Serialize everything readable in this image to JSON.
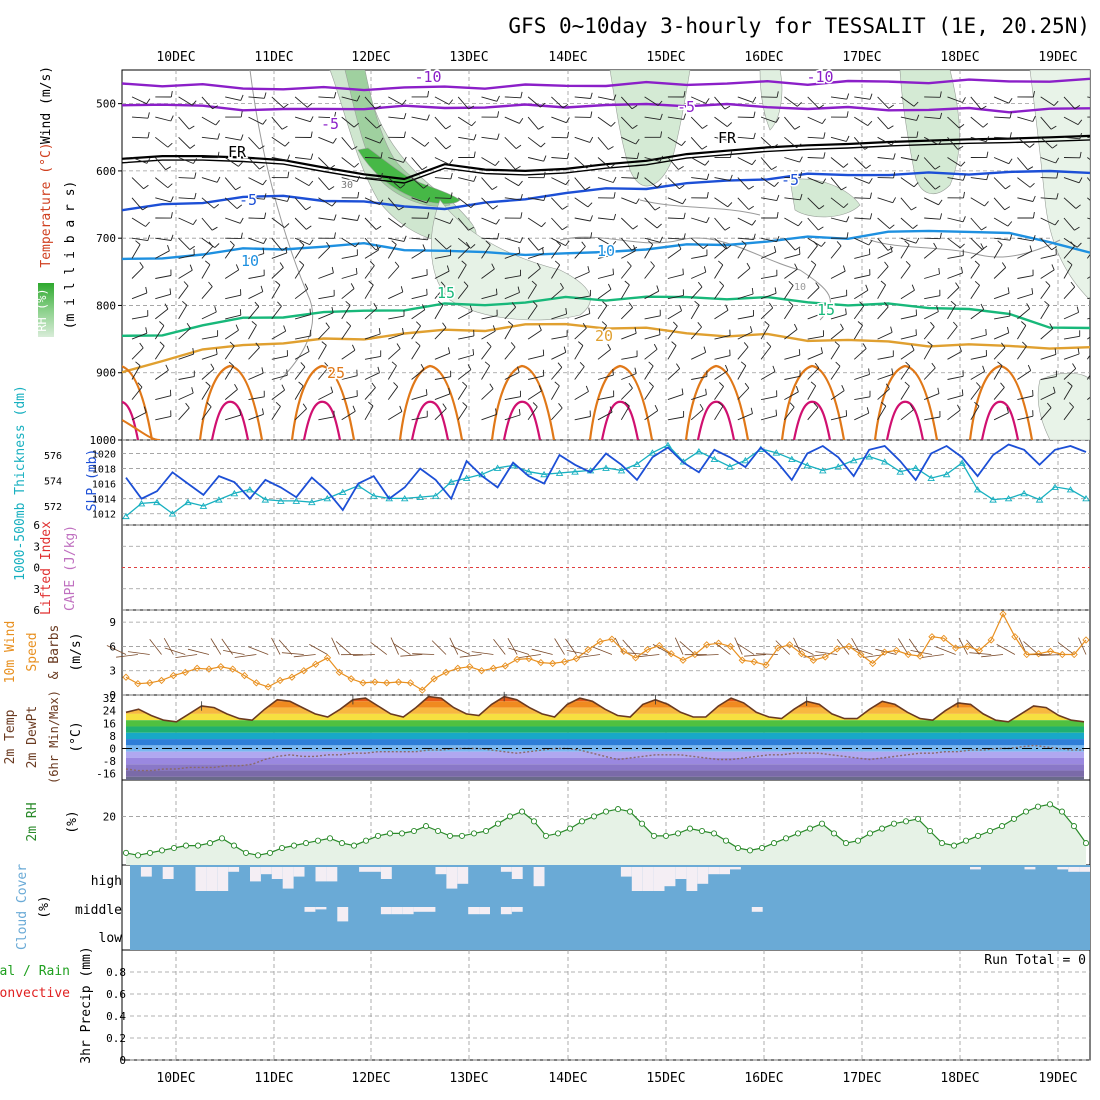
{
  "title": "GFS 0~10day 3-hourly for TESSALIT (1E, 20.25N)",
  "colors": {
    "purple": "#8b1fc8",
    "blue": "#1c4fd6",
    "lightblue": "#1e90e0",
    "green": "#18b87a",
    "orange": "#e0a030",
    "darkorange": "#e07818",
    "magenta": "#d01070",
    "cloud": "#6aaad6",
    "rh_fill": "#e6f2e6",
    "rh_line": "#2a8a2a"
  },
  "chart_data": [
    {
      "type": "line",
      "name": "upper-air cross section",
      "ylabel_parts": [
        "Wind (m/s)",
        "Temperature (°C)",
        "RH (%)",
        "(millibars)"
      ],
      "ylabel_wind": "Wind (m/s)",
      "ylabel_temp": "Temperature (°C)",
      "ylabel_rh": "RH (%)",
      "ylabel_unit": "(m i l l i b a r s)",
      "ylim": [
        1000,
        450
      ],
      "yticks": [
        "500",
        "600",
        "700",
        "800",
        "900",
        "1000"
      ],
      "ytick_values": [
        500,
        600,
        700,
        800,
        900,
        1000
      ],
      "xticks": [
        "10DEC",
        "11DEC",
        "12DEC",
        "13DEC",
        "14DEC",
        "15DEC",
        "16DEC",
        "17DEC",
        "18DEC",
        "19DEC"
      ],
      "contour_labels": [
        "-10",
        "-10",
        "-5",
        "-5",
        "FR",
        "FR",
        "-5",
        "-5",
        "10",
        "10",
        "15",
        "15",
        "20",
        "25",
        "30",
        "10"
      ],
      "isotherms": [
        {
          "name": "-10",
          "color": "#8b1fc8",
          "values": [
            470,
            472,
            474,
            476,
            478,
            478,
            477,
            477,
            476,
            475,
            474,
            473,
            472,
            471,
            470,
            470,
            469,
            469,
            468,
            468,
            467,
            467,
            466,
            466,
            466
          ]
        },
        {
          "name": "-5",
          "color": "#8b1fc8",
          "values": [
            500,
            502,
            505,
            507,
            510,
            508,
            506,
            506,
            505,
            505,
            504,
            503,
            503,
            502,
            501,
            503,
            505,
            506,
            508,
            508,
            509,
            509,
            510,
            509,
            508
          ]
        },
        {
          "name": "FR",
          "color": "#000000",
          "values": [
            582,
            578,
            578,
            580,
            584,
            595,
            605,
            612,
            590,
            598,
            600,
            597,
            590,
            585,
            575,
            570,
            565,
            562,
            560,
            557,
            555,
            553,
            552,
            550,
            548
          ]
        },
        {
          "name": "5",
          "color": "#1c4fd6",
          "values": [
            658,
            652,
            645,
            640,
            638,
            642,
            648,
            652,
            655,
            650,
            640,
            633,
            628,
            624,
            620,
            615,
            610,
            607,
            605,
            605,
            605,
            603,
            602,
            602,
            600
          ]
        },
        {
          "name": "10",
          "color": "#1e90e0",
          "values": [
            733,
            730,
            722,
            718,
            715,
            712,
            710,
            715,
            720,
            722,
            722,
            725,
            720,
            715,
            712,
            708,
            705,
            700,
            698,
            692,
            690,
            688,
            695,
            705,
            720
          ]
        },
        {
          "name": "15",
          "color": "#18b87a",
          "values": [
            848,
            842,
            830,
            820,
            815,
            812,
            808,
            805,
            800,
            798,
            795,
            790,
            790,
            788,
            789,
            788,
            790,
            795,
            798,
            800,
            802,
            805,
            815,
            830,
            835
          ]
        },
        {
          "name": "20",
          "color": "#e0a030",
          "values": [
            900,
            880,
            868,
            858,
            855,
            852,
            848,
            842,
            838,
            835,
            830,
            828,
            832,
            836,
            840,
            845,
            845,
            850,
            852,
            855,
            858,
            860,
            860,
            862,
            865
          ]
        }
      ]
    },
    {
      "type": "line",
      "name": "thickness and sea level pressure",
      "ylabel_thickness": "1000-500mb Thickness (dm)",
      "ylabel_slp": "SLP (mb)",
      "thickness_ticks": [
        "576",
        "574",
        "572"
      ],
      "slp_ticks": [
        "1020",
        "1018",
        "1016",
        "1014",
        "1012"
      ],
      "series": [
        {
          "name": "1000-500mb Thickness (dm)",
          "color": "#18b0c0",
          "values": [
            571.2,
            572.2,
            572.3,
            571.4,
            572.3,
            572.0,
            572.5,
            573.0,
            573.3,
            572.5,
            572.4,
            572.4,
            572.3,
            572.6,
            573.1,
            573.6,
            572.8,
            572.6,
            572.6,
            572.7,
            572.8,
            573.9,
            574.2,
            574.5,
            575.0,
            575.2,
            574.7,
            574.5,
            574.6,
            574.7,
            574.8,
            575.0,
            574.8,
            575.3,
            576.2,
            576.8,
            575.5,
            576.3,
            575.7,
            575.1,
            575.6,
            576.5,
            576.2,
            575.7,
            575.2,
            574.8,
            575.1,
            575.6,
            575.9,
            575.5,
            574.7,
            575.0,
            574.2,
            574.5,
            575.4,
            573.3,
            572.5,
            572.6,
            573.0,
            572.5,
            573.5,
            573.3,
            572.6
          ]
        },
        {
          "name": "SLP (mb)",
          "color": "#1c4fd6",
          "values": [
            1016.8,
            1014.0,
            1015.0,
            1017.5,
            1016.0,
            1014.5,
            1017.0,
            1016.2,
            1014.0,
            1016.5,
            1015.5,
            1014.2,
            1016.8,
            1015.0,
            1012.5,
            1016.0,
            1017.0,
            1014.0,
            1015.5,
            1018.0,
            1016.5,
            1014.0,
            1019.0,
            1017.0,
            1015.5,
            1018.8,
            1017.0,
            1016.0,
            1019.8,
            1018.5,
            1017.5,
            1020.0,
            1018.5,
            1016.5,
            1019.5,
            1020.8,
            1018.8,
            1017.5,
            1020.5,
            1019.5,
            1018.2,
            1020.8,
            1019.0,
            1016.5,
            1020.0,
            1021.0,
            1019.5,
            1017.0,
            1020.5,
            1021.0,
            1019.0,
            1016.5,
            1020.0,
            1021.0,
            1019.5,
            1017.0,
            1019.8,
            1021.2,
            1020.5,
            1018.5,
            1020.5,
            1021.0,
            1020.2
          ]
        }
      ]
    },
    {
      "type": "line",
      "name": "lifted index and cape",
      "ylabel_li": "Lifted Index",
      "ylabel_cape": "CAPE (J/kg)",
      "yticks": [
        "-6",
        "-3",
        "0",
        "3",
        "6"
      ],
      "ylim": [
        6,
        -6
      ],
      "reference_line": 0
    },
    {
      "type": "line",
      "name": "10m wind",
      "ylabel": "10m Wind Speed & Barbs (m/s)",
      "ylabel_wind": "10m Wind",
      "ylabel_speed": "Speed",
      "ylabel_barbs": "& Barbs",
      "ylabel_unit": "(m/s)",
      "yticks": [
        "9",
        "6",
        "3",
        "0"
      ],
      "ylim": [
        0,
        10.5
      ],
      "series": [
        {
          "name": "10m Wind Speed",
          "color": "#e89020",
          "values": [
            2.2,
            1.4,
            1.5,
            1.8,
            2.4,
            2.8,
            3.3,
            3.2,
            3.5,
            3.2,
            2.4,
            1.5,
            1.0,
            1.8,
            2.2,
            3.0,
            3.8,
            4.6,
            2.8,
            2.0,
            1.5,
            1.6,
            1.5,
            1.6,
            1.5,
            0.6,
            2.0,
            2.8,
            3.3,
            3.5,
            3.0,
            3.3,
            3.6,
            4.4,
            4.5,
            4.0,
            3.9,
            4.1,
            4.5,
            5.6,
            6.6,
            6.9,
            5.4,
            4.6,
            5.6,
            6.1,
            5.1,
            4.3,
            5.0,
            6.2,
            6.4,
            6.0,
            4.3,
            4.1,
            3.7,
            5.8,
            6.2,
            5.1,
            4.3,
            4.7,
            5.7,
            6.0,
            5.0,
            3.9,
            5.3,
            5.5,
            5.0,
            4.8,
            7.2,
            7.0,
            5.8,
            6.0,
            5.5,
            6.8,
            10.0,
            7.2,
            5.0,
            5.1,
            5.4,
            5.0,
            5.0,
            6.8
          ]
        }
      ]
    },
    {
      "type": "area",
      "name": "2m temperature and dewpoint",
      "ylabel_parts": [
        "2m Temp",
        "2m DewPt",
        "(6hr Min/Max)",
        "(°C)"
      ],
      "ylabel_temp": "2m Temp",
      "ylabel_dewpt": "2m DewPt",
      "ylabel_minmax": "(6hr Min/Max)",
      "ylabel_unit": "(°C)",
      "yticks": [
        "32",
        "24",
        "16",
        "8",
        "0",
        "-8",
        "-16"
      ],
      "ylim": [
        -20,
        34
      ],
      "series": [
        {
          "name": "2m Temp",
          "color": "#6a3a20",
          "values": [
            23,
            25,
            21,
            18,
            17,
            22,
            27,
            26,
            22,
            19,
            18,
            25,
            31,
            30,
            26,
            22,
            20,
            25,
            31,
            32,
            27,
            22,
            20,
            26,
            33,
            32,
            26,
            22,
            21,
            28,
            33,
            31,
            26,
            22,
            20,
            28,
            32,
            30,
            25,
            21,
            20,
            28,
            31,
            28,
            23,
            20,
            20,
            27,
            32,
            29,
            23,
            20,
            19,
            25,
            30,
            28,
            22,
            19,
            19,
            25,
            30,
            28,
            23,
            19,
            18,
            24,
            29,
            28,
            22,
            18,
            17,
            22,
            27,
            26,
            21,
            18,
            17
          ]
        },
        {
          "name": "2m DewPt",
          "color": "#8a6a6a",
          "values": [
            -13,
            -14,
            -14,
            -13,
            -13,
            -12,
            -12,
            -12,
            -11,
            -11,
            -10,
            -7,
            -5,
            -4,
            -5,
            -5,
            -4,
            -4,
            -3,
            -3,
            -2,
            -2,
            -2,
            -2,
            -1,
            -1,
            0,
            0,
            0,
            -1,
            -2,
            -3,
            -2,
            -1,
            0,
            0,
            -1,
            -3,
            -5,
            -7,
            -6,
            -5,
            -4,
            -4,
            -4,
            -5,
            -6,
            -7,
            -7,
            -6,
            -5,
            -4,
            -4,
            -3,
            -3,
            -3,
            -4,
            -5,
            -6,
            -7,
            -6,
            -5,
            -4,
            -3,
            -3,
            -2,
            -2,
            -1,
            -1,
            0,
            0,
            1,
            2,
            1,
            0,
            -1,
            -1
          ]
        }
      ]
    },
    {
      "type": "area",
      "name": "2m relative humidity",
      "ylabel": "2m RH",
      "ylabel_unit": "(%)",
      "yticks": [
        "20"
      ],
      "ylim": [
        0,
        35
      ],
      "series": [
        {
          "name": "2m RH",
          "color": "#2a8a2a",
          "values": [
            5,
            4,
            5,
            6,
            7,
            8,
            8,
            9,
            11,
            8,
            5,
            4,
            5,
            7,
            8,
            9,
            10,
            11,
            9,
            8,
            10,
            12,
            13,
            13,
            14,
            16,
            14,
            12,
            12,
            13,
            14,
            17,
            20,
            22,
            18,
            12,
            13,
            15,
            18,
            20,
            22,
            23,
            22,
            17,
            12,
            12,
            13,
            15,
            14,
            13,
            10,
            7,
            6,
            7,
            9,
            11,
            13,
            15,
            17,
            13,
            9,
            10,
            13,
            15,
            17,
            18,
            19,
            14,
            9,
            8,
            10,
            12,
            14,
            16,
            19,
            22,
            24,
            25,
            22,
            16,
            9
          ]
        }
      ]
    },
    {
      "type": "bar",
      "name": "cloud cover",
      "ylabel": "Cloud Cover (%)",
      "ylabel_name": "Cloud Cover",
      "ylabel_unit": "(%)",
      "levels": [
        "high",
        "middle",
        "low"
      ],
      "series": [
        {
          "name": "high",
          "color": "#f4eef4",
          "values": [
            0,
            0.4,
            0,
            0.5,
            0,
            0,
            1,
            1,
            1,
            0.2,
            0,
            0.6,
            0.3,
            0.5,
            0.9,
            0.4,
            0,
            0.6,
            0.6,
            0,
            0,
            0.2,
            0.2,
            0.5,
            0,
            0,
            0,
            0,
            0.3,
            0.9,
            0.7,
            0,
            0,
            0,
            0.2,
            0.5,
            0,
            0.8,
            0,
            0,
            0,
            0,
            0,
            0,
            0,
            0.4,
            1,
            1,
            1,
            0.8,
            0.5,
            1,
            0.7,
            0.3,
            0.3,
            0.1,
            0,
            0,
            0,
            0,
            0,
            0,
            0,
            0,
            0,
            0,
            0,
            0,
            0,
            0,
            0,
            0,
            0,
            0,
            0,
            0,
            0,
            0.1,
            0,
            0,
            0,
            0,
            0.1,
            0,
            0,
            0.1,
            0.2,
            0.2
          ]
        },
        {
          "name": "middle",
          "color": "#f4eef4",
          "values": [
            0,
            0,
            0,
            0,
            0,
            0,
            0,
            0,
            0,
            0,
            0,
            0,
            0,
            0,
            0,
            0,
            0.2,
            0.1,
            0,
            0.6,
            0,
            0,
            0,
            0.3,
            0.3,
            0.3,
            0.2,
            0.2,
            0,
            0,
            0,
            0.3,
            0.3,
            0,
            0.3,
            0.2,
            0,
            0,
            0,
            0,
            0,
            0,
            0,
            0,
            0,
            0,
            0,
            0,
            0,
            0,
            0,
            0,
            0,
            0,
            0,
            0,
            0,
            0.2,
            0,
            0,
            0,
            0,
            0,
            0,
            0,
            0,
            0,
            0,
            0,
            0,
            0,
            0,
            0,
            0,
            0,
            0,
            0,
            0,
            0,
            0,
            0,
            0,
            0,
            0,
            0,
            0,
            0,
            0
          ]
        },
        {
          "name": "low",
          "color": "#f4eef4",
          "values": []
        }
      ]
    },
    {
      "type": "bar",
      "name": "3hr precipitation",
      "ylabel_parts": [
        "Total / Rain",
        "Convective",
        "3hr Precip (mm)"
      ],
      "ylabel_total": "Total / Rain",
      "ylabel_conv": "Convective",
      "ylabel_unit": "3hr Precip (mm)",
      "yticks": [
        "0.8",
        "0.6",
        "0.4",
        "0.2",
        "0"
      ],
      "ylim": [
        0,
        1
      ],
      "run_total": "Run Total = 0",
      "series": [
        {
          "name": "Total / Rain",
          "color": "#20a020",
          "values": []
        },
        {
          "name": "Convective",
          "color": "#e02020",
          "values": []
        }
      ]
    }
  ]
}
